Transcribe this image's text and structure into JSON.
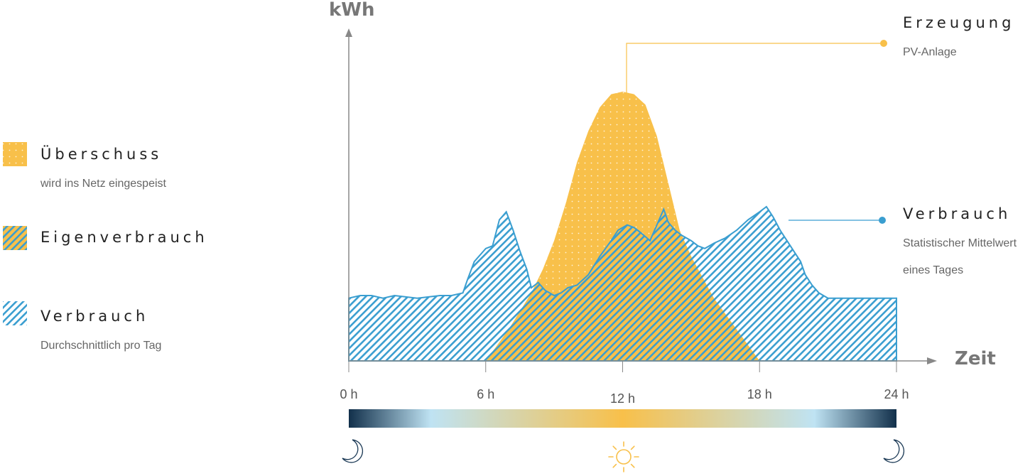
{
  "legend": [
    {
      "key": "ueberschuss",
      "title": "Überschuss",
      "subtitle": "wird ins Netz eingespeist",
      "pattern": "dots"
    },
    {
      "key": "eigenverbrauch",
      "title": "Eigenverbrauch",
      "subtitle": "",
      "pattern": "hatch-on-yellow"
    },
    {
      "key": "verbrauch",
      "title": "Verbrauch",
      "subtitle": "Durchschnittlich pro Tag",
      "pattern": "hatch"
    }
  ],
  "callouts": {
    "erzeugung": {
      "title": "Erzeugung",
      "subtitle": "PV-Anlage"
    },
    "verbrauch": {
      "title": "Verbrauch",
      "subtitle_1": "Statistischer Mittelwert",
      "subtitle_2": "eines Tages"
    }
  },
  "colors": {
    "production": "#F8C04A",
    "consumption": "#3A9ED0",
    "night": "#12304B",
    "dawn": "#BFE3F3",
    "noon": "#F8C04A",
    "axis": "#777777"
  },
  "icons": [
    "moon-icon",
    "sun-icon",
    "moon-icon"
  ],
  "chart_data": {
    "type": "area",
    "xlabel": "Zeit",
    "ylabel": "kWh",
    "xlim": [
      0,
      24
    ],
    "ylim": [
      0,
      10
    ],
    "x_ticks": [
      {
        "value": 0,
        "label": "0 h"
      },
      {
        "value": 6,
        "label": "6 h"
      },
      {
        "value": 12,
        "label": "12 h"
      },
      {
        "value": 18,
        "label": "18 h"
      },
      {
        "value": 24,
        "label": "24 h"
      }
    ],
    "series": [
      {
        "name": "Erzeugung",
        "x": [
          6,
          7,
          8,
          8.5,
          9,
          9.5,
          10,
          10.5,
          11,
          11.5,
          12,
          12.5,
          13,
          13.5,
          14,
          14.5,
          15,
          15.5,
          16,
          17,
          18
        ],
        "values": [
          0,
          1.2,
          2.6,
          3.5,
          4.6,
          6.0,
          7.6,
          8.8,
          9.7,
          10.2,
          10.3,
          10.2,
          9.8,
          8.6,
          6.8,
          5.0,
          4.0,
          3.2,
          2.4,
          1.2,
          0
        ]
      },
      {
        "name": "Verbrauch",
        "x": [
          0,
          0.5,
          1,
          1.5,
          2,
          3,
          4,
          4.5,
          5,
          5.2,
          5.5,
          6,
          6.3,
          6.6,
          6.9,
          7.2,
          7.5,
          7.8,
          8,
          8.3,
          8.6,
          9,
          9.3,
          9.6,
          10,
          10.5,
          11,
          11.5,
          11.8,
          12.2,
          12.5,
          12.8,
          13.2,
          13.5,
          13.8,
          14,
          14.3,
          14.6,
          15,
          15.3,
          15.6,
          16,
          16.5,
          17,
          17.5,
          18,
          18.3,
          18.6,
          18.9,
          19.2,
          19.5,
          19.8,
          20,
          20.3,
          20.6,
          21,
          21.5,
          22,
          23,
          24
        ],
        "values": [
          2.4,
          2.5,
          2.5,
          2.4,
          2.5,
          2.4,
          2.5,
          2.5,
          2.6,
          3.1,
          3.8,
          4.3,
          4.4,
          5.4,
          5.7,
          5.0,
          4.2,
          3.5,
          2.8,
          3.0,
          2.7,
          2.5,
          2.6,
          2.8,
          2.9,
          3.3,
          4.0,
          4.6,
          5.0,
          5.2,
          5.1,
          4.9,
          4.6,
          5.2,
          5.8,
          5.3,
          5.0,
          4.8,
          4.6,
          4.4,
          4.3,
          4.5,
          4.7,
          5.0,
          5.4,
          5.7,
          5.9,
          5.5,
          5.0,
          4.6,
          4.2,
          3.8,
          3.3,
          2.9,
          2.6,
          2.4,
          2.4,
          2.4,
          2.4,
          2.4
        ]
      }
    ]
  }
}
